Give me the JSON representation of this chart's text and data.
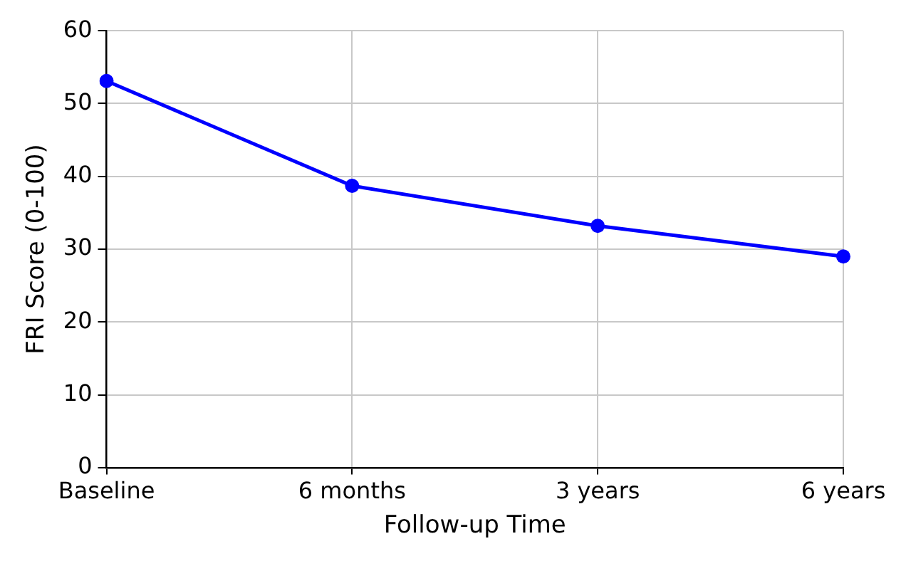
{
  "chart_data": {
    "type": "line",
    "xlabel": "Follow-up Time",
    "ylabel": "FRI Score (0-100)",
    "categories": [
      "Baseline",
      "6 months",
      "3 years",
      "6 years"
    ],
    "series": [
      {
        "color": "#0000ff",
        "values": [
          53.1,
          38.7,
          33.2,
          29.0
        ]
      }
    ],
    "ylim": [
      0,
      60
    ],
    "yticks": [
      0,
      10,
      20,
      30,
      40,
      50,
      60
    ],
    "grid": true,
    "legend": false,
    "marker": "circle",
    "line_style": "solid"
  }
}
